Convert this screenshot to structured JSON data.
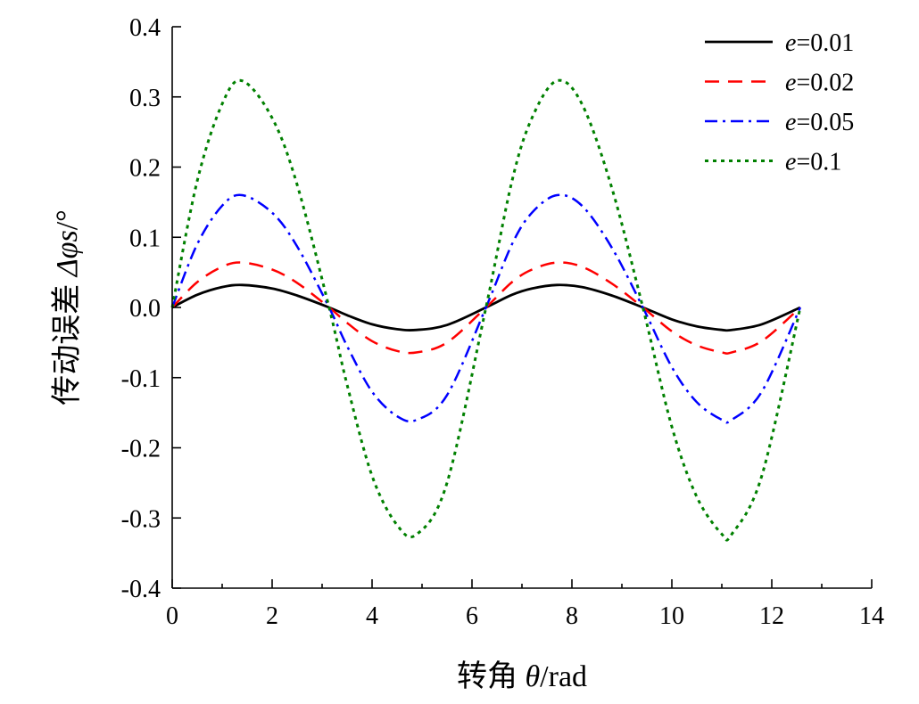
{
  "chart_data": {
    "type": "line",
    "title": "",
    "xlabel": "转角 θ/rad",
    "xlabel_parts": {
      "prefix": "转角 ",
      "symbol": "θ",
      "unit": "/rad"
    },
    "ylabel": "传动误差 Δφs/°",
    "ylabel_parts": {
      "prefix": "传动误差 ",
      "symbol": "Δφs",
      "unit": "/°"
    },
    "xlim": [
      0,
      14
    ],
    "ylim": [
      -0.4,
      0.4
    ],
    "x_ticks": [
      0,
      2,
      4,
      6,
      8,
      10,
      12,
      14
    ],
    "x_tick_labels": [
      "0",
      "2",
      "4",
      "6",
      "8",
      "10",
      "12",
      "14"
    ],
    "y_ticks": [
      -0.4,
      -0.3,
      -0.2,
      -0.1,
      0.0,
      0.1,
      0.2,
      0.3,
      0.4
    ],
    "y_tick_labels": [
      "-0.4",
      "-0.3",
      "-0.2",
      "-0.1",
      "0.0",
      "0.1",
      "0.2",
      "0.3",
      "0.4"
    ],
    "grid": false,
    "legend_position": "top-right",
    "x": [
      0,
      0.5,
      1.0,
      1.4,
      2.0,
      2.5,
      3.14,
      3.5,
      4.0,
      4.5,
      4.9,
      5.5,
      6.28,
      6.8,
      7.2,
      7.7,
      8.2,
      8.8,
      9.42,
      10.0,
      10.5,
      11.0,
      11.2,
      11.8,
      12.57
    ],
    "series": [
      {
        "name": "e=0.01",
        "name_symbol": "e",
        "name_value": "=0.01",
        "color": "#000000",
        "dash": "solid",
        "values": [
          0,
          0.018,
          0.029,
          0.032,
          0.027,
          0.017,
          0,
          -0.011,
          -0.024,
          -0.031,
          -0.032,
          -0.025,
          0,
          0.018,
          0.027,
          0.032,
          0.029,
          0.017,
          0,
          -0.017,
          -0.027,
          -0.032,
          -0.032,
          -0.024,
          0
        ]
      },
      {
        "name": "e=0.02",
        "name_symbol": "e",
        "name_value": "=0.02",
        "color": "#ff0000",
        "dash": "dashed",
        "values": [
          0,
          0.036,
          0.058,
          0.064,
          0.054,
          0.035,
          0,
          -0.022,
          -0.048,
          -0.062,
          -0.064,
          -0.05,
          0,
          0.036,
          0.054,
          0.064,
          0.058,
          0.034,
          0,
          -0.034,
          -0.054,
          -0.064,
          -0.064,
          -0.048,
          0
        ]
      },
      {
        "name": "e=0.05",
        "name_symbol": "e",
        "name_value": "=0.05",
        "color": "#0000ff",
        "dash": "dashdot",
        "values": [
          0,
          0.09,
          0.145,
          0.16,
          0.135,
          0.087,
          0,
          -0.055,
          -0.12,
          -0.155,
          -0.16,
          -0.125,
          0,
          0.09,
          0.135,
          0.16,
          0.145,
          0.085,
          0,
          -0.085,
          -0.135,
          -0.16,
          -0.16,
          -0.12,
          0
        ]
      },
      {
        "name": "e=0.1",
        "name_symbol": "e",
        "name_value": "=0.1",
        "color": "#008000",
        "dash": "dotted",
        "values": [
          0,
          0.18,
          0.29,
          0.323,
          0.27,
          0.175,
          0,
          -0.11,
          -0.24,
          -0.31,
          -0.323,
          -0.25,
          0,
          0.18,
          0.27,
          0.323,
          0.29,
          0.17,
          0,
          -0.17,
          -0.27,
          -0.323,
          -0.323,
          -0.24,
          0
        ]
      }
    ]
  }
}
